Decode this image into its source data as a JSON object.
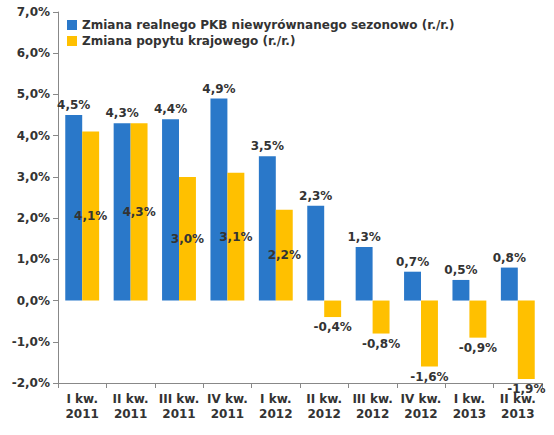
{
  "chart_data": {
    "type": "bar",
    "categories": [
      "I kw.\n2011",
      "II kw.\n2011",
      "III kw.\n2011",
      "IV kw.\n2011",
      "I kw.\n2012",
      "II kw.\n2012",
      "III kw.\n2012",
      "IV kw.\n2012",
      "I kw.\n2013",
      "II kw.\n2013"
    ],
    "series": [
      {
        "name": "Zmiana realnego PKB niewyrównanego sezonowo (r./r.)",
        "color": "#2a78c9",
        "values": [
          4.5,
          4.3,
          4.4,
          4.9,
          3.5,
          2.3,
          1.3,
          0.7,
          0.5,
          0.8
        ],
        "value_labels": [
          "4,5%",
          "4,3%",
          "4,4%",
          "4,9%",
          "3,5%",
          "2,3%",
          "1,3%",
          "0,7%",
          "0,5%",
          "0,8%"
        ]
      },
      {
        "name": "Zmiana popytu krajowego (r./r.)",
        "color": "#ffc000",
        "values": [
          4.1,
          4.3,
          3.0,
          3.1,
          2.2,
          -0.4,
          -0.8,
          -1.6,
          -0.9,
          -1.9
        ],
        "value_labels": [
          "4,1%",
          "4,3%",
          "3,0%",
          "3,1%",
          "2,2%",
          "-0,4%",
          "-0,8%",
          "-1,6%",
          "-0,9%",
          "-1,9%"
        ]
      }
    ],
    "ylim": [
      -2,
      7
    ],
    "yticks": [
      {
        "value": -2,
        "label": "-2,0%"
      },
      {
        "value": -1,
        "label": "-1,0%"
      },
      {
        "value": 0,
        "label": "0,0%"
      },
      {
        "value": 1,
        "label": "1,0%"
      },
      {
        "value": 2,
        "label": "2,0%"
      },
      {
        "value": 3,
        "label": "3,0%"
      },
      {
        "value": 4,
        "label": "4,0%"
      },
      {
        "value": 5,
        "label": "5,0%"
      },
      {
        "value": 6,
        "label": "6,0%"
      },
      {
        "value": 7,
        "label": "7,0%"
      }
    ],
    "grid": false,
    "legend": "upper left",
    "data_labels": true
  }
}
